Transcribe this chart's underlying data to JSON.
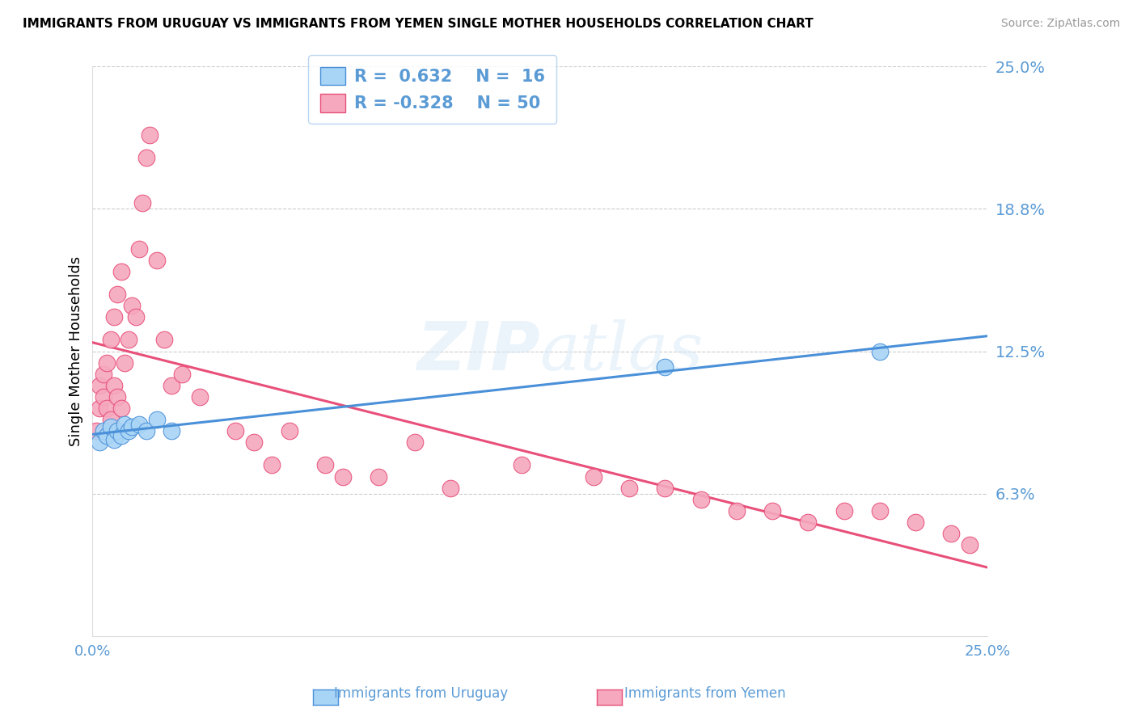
{
  "title": "IMMIGRANTS FROM URUGUAY VS IMMIGRANTS FROM YEMEN SINGLE MOTHER HOUSEHOLDS CORRELATION CHART",
  "source": "Source: ZipAtlas.com",
  "ylabel": "Single Mother Households",
  "xmin": 0.0,
  "xmax": 0.25,
  "ymin": 0.0,
  "ymax": 0.25,
  "ytick_vals": [
    0.0,
    0.0625,
    0.125,
    0.1875,
    0.25
  ],
  "ytick_labels": [
    "",
    "6.3%",
    "12.5%",
    "18.8%",
    "25.0%"
  ],
  "color_uruguay": "#A8D4F5",
  "color_yemen": "#F5A8BE",
  "color_line_uruguay": "#4A90D9",
  "color_line_yemen": "#E8507A",
  "color_text_blue": "#5B9BD5",
  "color_grid": "#CCCCCC",
  "watermark_text": "ZIPatlas",
  "legend_r1": "R =  0.632",
  "legend_n1": "N =  16",
  "legend_r2": "R = -0.328",
  "legend_n2": "N = 50",
  "legend_label1": "Immigrants from Uruguay",
  "legend_label2": "Immigrants from Yemen",
  "uruguay_x": [
    0.002,
    0.003,
    0.004,
    0.005,
    0.006,
    0.007,
    0.008,
    0.009,
    0.01,
    0.011,
    0.013,
    0.015,
    0.018,
    0.022,
    0.16,
    0.22
  ],
  "uruguay_y": [
    0.085,
    0.09,
    0.088,
    0.092,
    0.086,
    0.09,
    0.088,
    0.093,
    0.09,
    0.092,
    0.093,
    0.09,
    0.095,
    0.09,
    0.118,
    0.125
  ],
  "yemen_x": [
    0.001,
    0.002,
    0.002,
    0.003,
    0.003,
    0.004,
    0.004,
    0.005,
    0.005,
    0.006,
    0.006,
    0.007,
    0.007,
    0.008,
    0.008,
    0.009,
    0.01,
    0.011,
    0.012,
    0.013,
    0.014,
    0.015,
    0.016,
    0.018,
    0.02,
    0.022,
    0.025,
    0.03,
    0.04,
    0.045,
    0.05,
    0.055,
    0.065,
    0.07,
    0.08,
    0.09,
    0.1,
    0.12,
    0.14,
    0.15,
    0.16,
    0.17,
    0.18,
    0.19,
    0.2,
    0.21,
    0.22,
    0.23,
    0.24,
    0.245
  ],
  "yemen_y": [
    0.09,
    0.1,
    0.11,
    0.105,
    0.115,
    0.1,
    0.12,
    0.095,
    0.13,
    0.11,
    0.14,
    0.105,
    0.15,
    0.1,
    0.16,
    0.12,
    0.13,
    0.145,
    0.14,
    0.17,
    0.19,
    0.21,
    0.22,
    0.165,
    0.13,
    0.11,
    0.115,
    0.105,
    0.09,
    0.085,
    0.075,
    0.09,
    0.075,
    0.07,
    0.07,
    0.085,
    0.065,
    0.075,
    0.07,
    0.065,
    0.065,
    0.06,
    0.055,
    0.055,
    0.05,
    0.055,
    0.055,
    0.05,
    0.045,
    0.04
  ]
}
